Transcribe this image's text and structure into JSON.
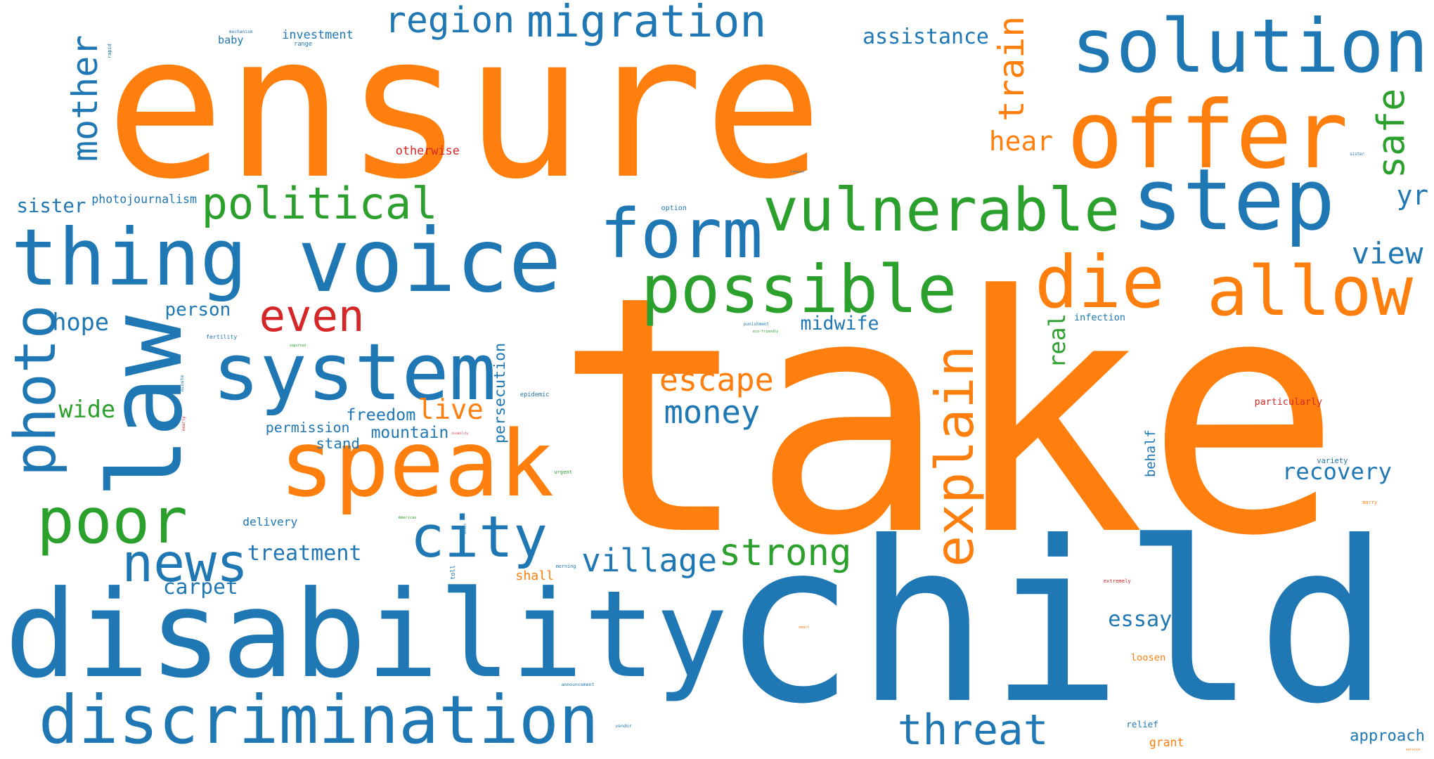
{
  "palette": {
    "blue": "#1f77b4",
    "orange": "#ff7f0e",
    "green": "#2ca02c",
    "red": "#d62728"
  },
  "words": [
    {
      "text": "ensure",
      "color": "orange"
    },
    {
      "text": "take",
      "color": "orange"
    },
    {
      "text": "child",
      "color": "blue"
    },
    {
      "text": "disability",
      "color": "blue"
    },
    {
      "text": "voice",
      "color": "blue"
    },
    {
      "text": "thing",
      "color": "blue"
    },
    {
      "text": "solution",
      "color": "blue"
    },
    {
      "text": "offer",
      "color": "orange"
    },
    {
      "text": "speak",
      "color": "orange"
    },
    {
      "text": "system",
      "color": "blue"
    },
    {
      "text": "discrimination",
      "color": "blue"
    },
    {
      "text": "step",
      "color": "blue"
    },
    {
      "text": "law",
      "color": "blue"
    },
    {
      "text": "vulnerable",
      "color": "green"
    },
    {
      "text": "possible",
      "color": "green"
    },
    {
      "text": "allow",
      "color": "orange"
    },
    {
      "text": "form",
      "color": "blue"
    },
    {
      "text": "die",
      "color": "orange"
    },
    {
      "text": "poor",
      "color": "green"
    },
    {
      "text": "explain",
      "color": "orange"
    },
    {
      "text": "photo",
      "color": "blue"
    },
    {
      "text": "migration",
      "color": "blue"
    },
    {
      "text": "city",
      "color": "blue"
    },
    {
      "text": "news",
      "color": "blue"
    },
    {
      "text": "threat",
      "color": "blue"
    },
    {
      "text": "political",
      "color": "green"
    },
    {
      "text": "mother",
      "color": "blue"
    },
    {
      "text": "even",
      "color": "red"
    },
    {
      "text": "strong",
      "color": "green"
    },
    {
      "text": "region",
      "color": "blue"
    },
    {
      "text": "village",
      "color": "blue"
    },
    {
      "text": "train",
      "color": "orange"
    },
    {
      "text": "safe",
      "color": "green"
    },
    {
      "text": "money",
      "color": "blue"
    },
    {
      "text": "escape",
      "color": "orange"
    },
    {
      "text": "live",
      "color": "orange"
    },
    {
      "text": "view",
      "color": "blue"
    },
    {
      "text": "hope",
      "color": "blue"
    },
    {
      "text": "recovery",
      "color": "blue"
    },
    {
      "text": "hear",
      "color": "orange"
    },
    {
      "text": "treatment",
      "color": "blue"
    },
    {
      "text": "yr",
      "color": "blue"
    },
    {
      "text": "essay",
      "color": "blue"
    },
    {
      "text": "real",
      "color": "green"
    },
    {
      "text": "persecution",
      "color": "blue"
    },
    {
      "text": "wide",
      "color": "green"
    },
    {
      "text": "approach",
      "color": "blue"
    },
    {
      "text": "assistance",
      "color": "blue"
    },
    {
      "text": "carpet",
      "color": "blue"
    },
    {
      "text": "freedom",
      "color": "blue"
    },
    {
      "text": "sister",
      "color": "blue"
    },
    {
      "text": "mountain",
      "color": "blue"
    },
    {
      "text": "midwife",
      "color": "blue"
    },
    {
      "text": "person",
      "color": "blue"
    },
    {
      "text": "permission",
      "color": "blue"
    },
    {
      "text": "investment",
      "color": "blue"
    },
    {
      "text": "photojournalism",
      "color": "blue"
    },
    {
      "text": "delivery",
      "color": "blue"
    },
    {
      "text": "stand",
      "color": "blue"
    },
    {
      "text": "baby",
      "color": "blue"
    },
    {
      "text": "behalf",
      "color": "blue"
    },
    {
      "text": "otherwise",
      "color": "red"
    },
    {
      "text": "grant",
      "color": "orange"
    },
    {
      "text": "shall",
      "color": "orange"
    },
    {
      "text": "infection",
      "color": "blue"
    },
    {
      "text": "particularly",
      "color": "red"
    },
    {
      "text": "relief",
      "color": "blue"
    },
    {
      "text": "loosen",
      "color": "orange"
    },
    {
      "text": "option",
      "color": "blue"
    },
    {
      "text": "toll",
      "color": "blue"
    },
    {
      "text": "epidemic",
      "color": "blue"
    },
    {
      "text": "fertility",
      "color": "blue"
    },
    {
      "text": "variety",
      "color": "blue"
    },
    {
      "text": "urgent",
      "color": "green"
    },
    {
      "text": "morning",
      "color": "blue"
    },
    {
      "text": "extremely",
      "color": "red"
    },
    {
      "text": "announcement",
      "color": "blue"
    },
    {
      "text": "vendor",
      "color": "blue"
    },
    {
      "text": "punishment",
      "color": "blue"
    },
    {
      "text": "eco-friendly",
      "color": "green"
    },
    {
      "text": "range",
      "color": "blue"
    },
    {
      "text": "mechanism",
      "color": "blue"
    },
    {
      "text": "rapid",
      "color": "blue"
    },
    {
      "text": "minute",
      "color": "blue"
    },
    {
      "text": "nearly",
      "color": "red"
    },
    {
      "text": "imported",
      "color": "green"
    },
    {
      "text": "Americas",
      "color": "green"
    },
    {
      "text": "disability",
      "color": "red"
    },
    {
      "text": "doubt",
      "color": "blue"
    },
    {
      "text": "marry",
      "color": "orange"
    },
    {
      "text": "smart",
      "color": "orange"
    },
    {
      "text": "browser",
      "color": "blue"
    },
    {
      "text": "sister",
      "color": "blue"
    },
    {
      "text": "service",
      "color": "orange"
    }
  ]
}
